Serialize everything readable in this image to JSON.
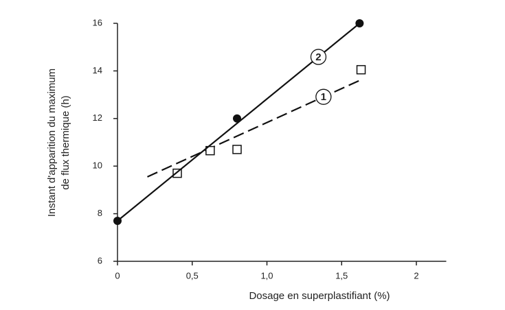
{
  "chart_data": {
    "type": "scatter",
    "x_label": "Dosage en superplastifiant  (%)",
    "y_label": [
      "Instant d'apparition du maximum",
      "de flux thermique  (h)"
    ],
    "xlim": [
      0,
      2.2
    ],
    "ylim": [
      6,
      16
    ],
    "xticks": [
      0,
      {
        "value": 0.5,
        "label": "0,5"
      },
      {
        "value": 1.0,
        "label": "1,0"
      },
      {
        "value": 1.5,
        "label": "1,5"
      },
      2
    ],
    "yticks": [
      6,
      8,
      10,
      12,
      14,
      16
    ],
    "series": [
      {
        "name": "1",
        "marker": "square",
        "color": "#111",
        "x": [
          0.4,
          0.62,
          0.8,
          1.63
        ],
        "values": [
          9.7,
          10.65,
          10.7,
          14.05
        ],
        "fit": {
          "x": [
            0.2,
            1.62
          ],
          "values": [
            9.55,
            13.6
          ],
          "dashed": true
        }
      },
      {
        "name": "2",
        "marker": "circle",
        "color": "#111",
        "x": [
          0,
          0.8,
          1.62
        ],
        "values": [
          7.7,
          12.0,
          16.0
        ],
        "fit": {
          "x": [
            0,
            1.62
          ],
          "values": [
            7.7,
            16.0
          ],
          "dashed": false
        }
      }
    ]
  }
}
